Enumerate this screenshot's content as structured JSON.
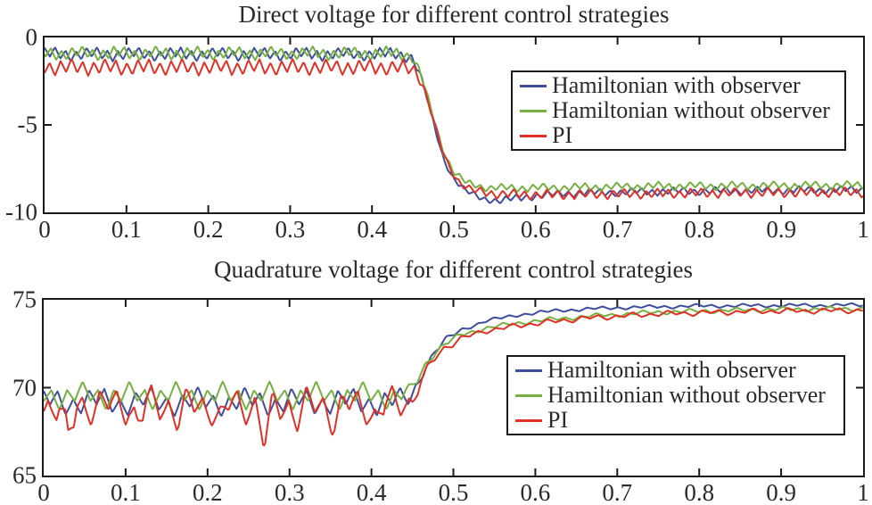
{
  "figure": {
    "background": "#ffffff",
    "axis_color": "#1a1a1a",
    "text_color": "#2a2a2a"
  },
  "chart_data": [
    {
      "type": "line",
      "title": "Direct voltage for different control strategies",
      "xlabel": "",
      "ylabel": "",
      "xlim": [
        0,
        1
      ],
      "ylim": [
        -10,
        0
      ],
      "x_tick_values": [
        0,
        0.1,
        0.2,
        0.3,
        0.4,
        0.5,
        0.6,
        0.7,
        0.8,
        0.9,
        1
      ],
      "x_tick_labels": [
        "0",
        "0.1",
        "0.2",
        "0.3",
        "0.4",
        "0.5",
        "0.6",
        "0.7",
        "0.8",
        "0.9",
        "1"
      ],
      "y_tick_values": [
        0,
        -5,
        -10
      ],
      "y_tick_labels": [
        "0",
        "-5",
        "-10"
      ],
      "grid": false,
      "legend_position": "inside-upper-right",
      "step_time": 0.45,
      "series": [
        {
          "name": "Hamiltonian with observer",
          "color": "#3f4e9c",
          "pre_step_level": -0.95,
          "post_step_level": -8.7,
          "base_points": [
            [
              0,
              -0.95
            ],
            [
              0.43,
              -0.95
            ],
            [
              0.448,
              -1.1
            ],
            [
              0.458,
              -2.0
            ],
            [
              0.468,
              -3.6
            ],
            [
              0.478,
              -5.4
            ],
            [
              0.488,
              -7.0
            ],
            [
              0.5,
              -8.1
            ],
            [
              0.515,
              -8.8
            ],
            [
              0.535,
              -9.2
            ],
            [
              0.555,
              -9.35
            ],
            [
              0.59,
              -9.1
            ],
            [
              0.64,
              -8.9
            ],
            [
              0.75,
              -8.8
            ],
            [
              1,
              -8.7
            ]
          ],
          "amp_points": [
            [
              0,
              0.42
            ],
            [
              0.44,
              0.4
            ],
            [
              0.47,
              0.15
            ],
            [
              0.52,
              0.2
            ],
            [
              0.58,
              0.25
            ],
            [
              1,
              0.25
            ]
          ],
          "ripple": {
            "p": 0.0128,
            "a1": 0.68,
            "ph1": 0.0,
            "p2": 0.051,
            "a2": 0.32,
            "ph2": 0.6
          },
          "spikes": []
        },
        {
          "name": "Hamiltonian without observer",
          "color": "#76b041",
          "pre_step_level": -0.9,
          "post_step_level": -8.45,
          "base_points": [
            [
              0,
              -0.9
            ],
            [
              0.43,
              -0.9
            ],
            [
              0.448,
              -1.05
            ],
            [
              0.458,
              -1.9
            ],
            [
              0.468,
              -3.4
            ],
            [
              0.478,
              -5.1
            ],
            [
              0.488,
              -6.6
            ],
            [
              0.5,
              -7.7
            ],
            [
              0.515,
              -8.3
            ],
            [
              0.54,
              -8.6
            ],
            [
              0.6,
              -8.6
            ],
            [
              0.75,
              -8.5
            ],
            [
              1,
              -8.45
            ]
          ],
          "amp_points": [
            [
              0,
              0.42
            ],
            [
              0.44,
              0.4
            ],
            [
              0.47,
              0.15
            ],
            [
              0.52,
              0.22
            ],
            [
              0.58,
              0.26
            ],
            [
              1,
              0.26
            ]
          ],
          "ripple": {
            "p": 0.0128,
            "a1": 0.68,
            "ph1": 0.4,
            "p2": 0.047,
            "a2": 0.32,
            "ph2": 2.1
          },
          "spikes": []
        },
        {
          "name": "PI",
          "color": "#e03127",
          "pre_step_level": -1.7,
          "post_step_level": -8.85,
          "base_points": [
            [
              0,
              -1.7
            ],
            [
              0.43,
              -1.7
            ],
            [
              0.452,
              -1.85
            ],
            [
              0.462,
              -2.7
            ],
            [
              0.472,
              -4.2
            ],
            [
              0.482,
              -5.9
            ],
            [
              0.492,
              -7.2
            ],
            [
              0.505,
              -8.2
            ],
            [
              0.52,
              -8.7
            ],
            [
              0.55,
              -8.95
            ],
            [
              0.62,
              -9.0
            ],
            [
              0.8,
              -8.9
            ],
            [
              1,
              -8.85
            ]
          ],
          "amp_points": [
            [
              0,
              0.5
            ],
            [
              0.44,
              0.48
            ],
            [
              0.47,
              0.2
            ],
            [
              0.52,
              0.26
            ],
            [
              0.58,
              0.3
            ],
            [
              1,
              0.3
            ]
          ],
          "ripple": {
            "p": 0.0135,
            "a1": 0.75,
            "ph1": 0.55,
            "p2": 0.045,
            "a2": 0.25,
            "ph2": 3.4
          },
          "spikes": []
        }
      ]
    },
    {
      "type": "line",
      "title": "Quadrature voltage for different control strategies",
      "xlabel": "",
      "ylabel": "",
      "xlim": [
        0,
        1
      ],
      "ylim": [
        65,
        75
      ],
      "x_tick_values": [
        0,
        0.1,
        0.2,
        0.3,
        0.4,
        0.5,
        0.6,
        0.7,
        0.8,
        0.9,
        1
      ],
      "x_tick_labels": [
        "0",
        "0.1",
        "0.2",
        "0.3",
        "0.4",
        "0.5",
        "0.6",
        "0.7",
        "0.8",
        "0.9",
        "1"
      ],
      "y_tick_values": [
        75,
        70,
        65
      ],
      "y_tick_labels": [
        "75",
        "70",
        "65"
      ],
      "grid": false,
      "legend_position": "inside-middle-right",
      "step_time": 0.45,
      "series": [
        {
          "name": "Hamiltonian with observer",
          "color": "#3f4e9c",
          "pre_step_level": 69.2,
          "post_step_level": 74.7,
          "base_points": [
            [
              0,
              69.2
            ],
            [
              0.43,
              69.2
            ],
            [
              0.447,
              69.4
            ],
            [
              0.457,
              70.3
            ],
            [
              0.467,
              71.3
            ],
            [
              0.477,
              72.0
            ],
            [
              0.49,
              72.7
            ],
            [
              0.51,
              73.3
            ],
            [
              0.54,
              73.8
            ],
            [
              0.58,
              74.15
            ],
            [
              0.63,
              74.4
            ],
            [
              0.7,
              74.55
            ],
            [
              0.8,
              74.65
            ],
            [
              1,
              74.7
            ]
          ],
          "amp_points": [
            [
              0,
              0.85
            ],
            [
              0.43,
              0.85
            ],
            [
              0.465,
              0.25
            ],
            [
              0.52,
              0.12
            ],
            [
              1,
              0.12
            ]
          ],
          "ripple": {
            "p": 0.019,
            "a1": 0.6,
            "ph1": 0.1,
            "p2": 0.061,
            "a2": 0.4,
            "ph2": 1.1
          },
          "spikes": []
        },
        {
          "name": "Hamiltonian without observer",
          "color": "#76b041",
          "pre_step_level": 69.55,
          "post_step_level": 74.5,
          "base_points": [
            [
              0,
              69.55
            ],
            [
              0.43,
              69.55
            ],
            [
              0.447,
              69.7
            ],
            [
              0.457,
              70.5
            ],
            [
              0.467,
              71.4
            ],
            [
              0.477,
              72.0
            ],
            [
              0.49,
              72.5
            ],
            [
              0.51,
              73.0
            ],
            [
              0.54,
              73.4
            ],
            [
              0.59,
              73.75
            ],
            [
              0.66,
              74.05
            ],
            [
              0.75,
              74.3
            ],
            [
              0.88,
              74.45
            ],
            [
              1,
              74.5
            ]
          ],
          "amp_points": [
            [
              0,
              0.8
            ],
            [
              0.43,
              0.8
            ],
            [
              0.465,
              0.25
            ],
            [
              0.52,
              0.15
            ],
            [
              1,
              0.15
            ]
          ],
          "ripple": {
            "p": 0.019,
            "a1": 0.6,
            "ph1": 0.5,
            "p2": 0.057,
            "a2": 0.4,
            "ph2": 2.6
          },
          "spikes": []
        },
        {
          "name": "PI",
          "color": "#e03127",
          "pre_step_level": 69.0,
          "post_step_level": 74.4,
          "base_points": [
            [
              0,
              69.0
            ],
            [
              0.43,
              69.0
            ],
            [
              0.45,
              69.3
            ],
            [
              0.46,
              70.3
            ],
            [
              0.47,
              71.2
            ],
            [
              0.48,
              71.8
            ],
            [
              0.49,
              72.3
            ],
            [
              0.51,
              72.8
            ],
            [
              0.54,
              73.25
            ],
            [
              0.59,
              73.6
            ],
            [
              0.66,
              73.95
            ],
            [
              0.75,
              74.2
            ],
            [
              0.88,
              74.35
            ],
            [
              1,
              74.4
            ]
          ],
          "amp_points": [
            [
              0,
              1.2
            ],
            [
              0.43,
              1.15
            ],
            [
              0.465,
              0.3
            ],
            [
              0.52,
              0.18
            ],
            [
              1,
              0.18
            ]
          ],
          "ripple": {
            "p": 0.021,
            "a1": 0.62,
            "ph1": 0.75,
            "p2": 0.049,
            "a2": 0.38,
            "ph2": 4.0
          },
          "spikes": [
            [
              0.03,
              -2.1,
              0.011
            ],
            [
              0.27,
              -2.25,
              0.011
            ],
            [
              0.115,
              -0.9,
              0.011
            ],
            [
              0.165,
              -0.75,
              0.011
            ],
            [
              0.215,
              -0.9,
              0.011
            ],
            [
              0.31,
              -0.7,
              0.011
            ],
            [
              0.355,
              -0.85,
              0.011
            ],
            [
              0.405,
              -0.7,
              0.011
            ]
          ]
        }
      ]
    }
  ]
}
